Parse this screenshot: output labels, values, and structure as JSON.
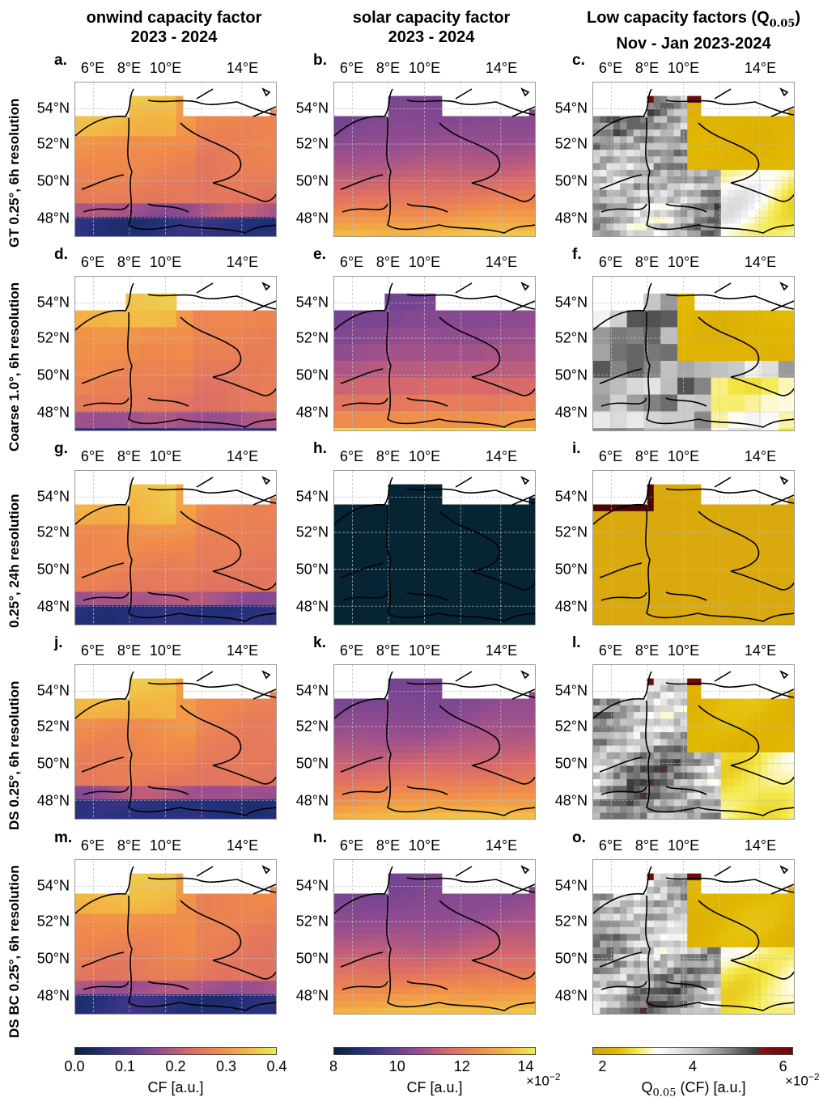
{
  "columns": [
    {
      "title_line1": "onwind capacity factor",
      "title_line2": "2023 - 2024"
    },
    {
      "title_line1": "solar capacity factor",
      "title_line2": "2023 - 2024"
    },
    {
      "title_line1": "Low capacity factors (Q",
      "title_sub": "0.05",
      "title_close": ")",
      "title_line2": "Nov - Jan 2023-2024"
    }
  ],
  "rows": [
    {
      "label": "GT 0.25°, 6h resolution"
    },
    {
      "label": "Coarse 1.0°, 6h resolution"
    },
    {
      "label": "0.25°, 24h resolution"
    },
    {
      "label": "DS 0.25°, 6h resolution"
    },
    {
      "label": "DS BC 0.25°, 6h resolution"
    }
  ],
  "panel_letters": [
    "a.",
    "b.",
    "c.",
    "d.",
    "e.",
    "f.",
    "g.",
    "h.",
    "i.",
    "j.",
    "k.",
    "l.",
    "m.",
    "n.",
    "o."
  ],
  "lon_ticks": [
    "6°E",
    "8°E",
    "10°E",
    "14°E"
  ],
  "lat_ticks": [
    "54°N",
    "52°N",
    "50°N",
    "48°N"
  ],
  "colorbars": [
    {
      "ticks": [
        "0.0",
        "0.1",
        "0.2",
        "0.3",
        "0.4"
      ],
      "label": "CF [a.u.]",
      "multiplier": ""
    },
    {
      "ticks": [
        "8",
        "10",
        "12",
        "14"
      ],
      "label": "CF [a.u.]",
      "multiplier_base": "×10",
      "multiplier_exp": "−2"
    },
    {
      "ticks": [
        "2",
        "4",
        "6"
      ],
      "label_pre": "Q",
      "label_sub": "0.05",
      "label_post": " (CF) [a.u.]",
      "multiplier_base": "×10",
      "multiplier_exp": "−2"
    }
  ],
  "chart_data": [
    {
      "type": "heatmap",
      "panel": "a",
      "quantity": "onwind capacity factor",
      "range": [
        0.0,
        0.4
      ],
      "mean_approx": 0.27,
      "lon_range": [
        5,
        15.5
      ],
      "lat_range": [
        47,
        55.5
      ]
    },
    {
      "type": "heatmap",
      "panel": "b",
      "quantity": "solar capacity factor",
      "range": [
        0.08,
        0.14
      ],
      "mean_approx": 0.105,
      "lon_range": [
        5,
        15.5
      ],
      "lat_range": [
        47,
        55.5
      ]
    },
    {
      "type": "heatmap",
      "panel": "c",
      "quantity": "Q0.05 (CF)",
      "range": [
        0.02,
        0.06
      ],
      "lon_range": [
        5,
        15.5
      ],
      "lat_range": [
        47,
        55.5
      ]
    },
    {
      "type": "heatmap",
      "panel": "d",
      "quantity": "onwind capacity factor",
      "range": [
        0.0,
        0.4
      ],
      "resolution_deg": 1.0
    },
    {
      "type": "heatmap",
      "panel": "e",
      "quantity": "solar capacity factor",
      "range": [
        0.08,
        0.14
      ],
      "resolution_deg": 1.0
    },
    {
      "type": "heatmap",
      "panel": "f",
      "quantity": "Q0.05 (CF)",
      "range": [
        0.02,
        0.06
      ],
      "resolution_deg": 1.0
    },
    {
      "type": "heatmap",
      "panel": "g",
      "quantity": "onwind capacity factor",
      "range": [
        0.0,
        0.4
      ]
    },
    {
      "type": "heatmap",
      "panel": "h",
      "quantity": "solar capacity factor",
      "range": [
        0.08,
        0.14
      ],
      "note_value": "below 0.08"
    },
    {
      "type": "heatmap",
      "panel": "i",
      "quantity": "Q0.05 (CF)",
      "range": [
        0.02,
        0.06
      ],
      "note_value": "about 0.02"
    },
    {
      "type": "heatmap",
      "panel": "j",
      "quantity": "onwind capacity factor",
      "range": [
        0.0,
        0.4
      ]
    },
    {
      "type": "heatmap",
      "panel": "k",
      "quantity": "solar capacity factor",
      "range": [
        0.08,
        0.14
      ]
    },
    {
      "type": "heatmap",
      "panel": "l",
      "quantity": "Q0.05 (CF)",
      "range": [
        0.02,
        0.06
      ]
    },
    {
      "type": "heatmap",
      "panel": "m",
      "quantity": "onwind capacity factor",
      "range": [
        0.0,
        0.4
      ]
    },
    {
      "type": "heatmap",
      "panel": "n",
      "quantity": "solar capacity factor",
      "range": [
        0.08,
        0.14
      ]
    },
    {
      "type": "heatmap",
      "panel": "o",
      "quantity": "Q0.05 (CF)",
      "range": [
        0.02,
        0.06
      ]
    }
  ],
  "colors": {
    "cmap_cf": [
      "#08233a",
      "#23307a",
      "#5b3d94",
      "#9a4f8f",
      "#d96a6a",
      "#f08a4b",
      "#f3b443",
      "#e9ef56"
    ],
    "cmap_q": [
      "#d4a20a",
      "#e2b800",
      "#f4e84a",
      "#ffffff",
      "#c8c8c8",
      "#808080",
      "#3a3a3a",
      "#8b1010",
      "#4a0505"
    ],
    "sea": "#ffffff",
    "border": "#000000"
  }
}
